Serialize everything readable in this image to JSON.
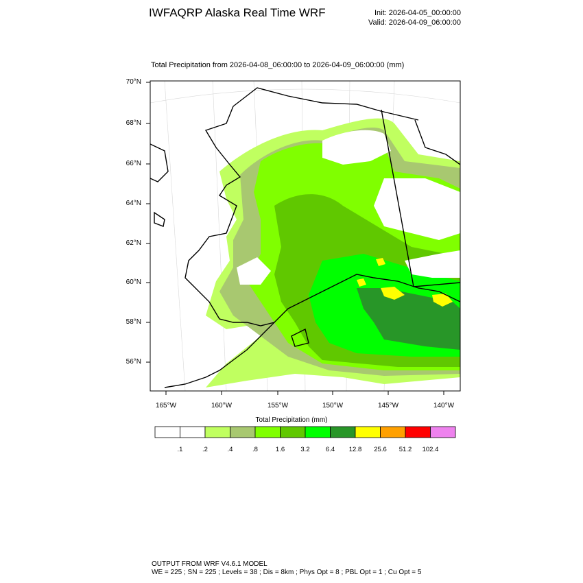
{
  "header": {
    "title": "IWFAQRP Alaska Real Time WRF",
    "init": "Init: 2026-04-05_00:00:00",
    "valid": "Valid: 2026-04-09_06:00:00"
  },
  "plot": {
    "title": "Total Precipitation from 2026-04-08_06:00:00 to 2026-04-09_06:00:00   (mm)",
    "lat_labels": [
      "70°N",
      "68°N",
      "66°N",
      "64°N",
      "62°N",
      "60°N",
      "58°N",
      "56°N"
    ],
    "lon_labels": [
      "165°W",
      "160°W",
      "155°W",
      "150°W",
      "145°W",
      "140°W"
    ]
  },
  "legend": {
    "title": "Total Precipitation  (mm)",
    "colors": [
      "#ffffff",
      "#ffffff",
      "#c0ff60",
      "#a8c870",
      "#80ff00",
      "#60c800",
      "#00ff00",
      "#289628",
      "#ffff00",
      "#ffa000",
      "#ff0000",
      "#ee82ee"
    ],
    "labels": [
      ".1",
      ".2",
      ".4",
      ".8",
      "1.6",
      "3.2",
      "6.4",
      "12.8",
      "25.6",
      "51.2",
      "102.4"
    ]
  },
  "footer": {
    "line1": "OUTPUT FROM WRF V4.6.1 MODEL",
    "line2": "WE = 225 ; SN = 225 ; Levels = 38 ; Dis = 8km ; Phys Opt = 8 ; PBL Opt = 1 ; Cu Opt = 5"
  }
}
